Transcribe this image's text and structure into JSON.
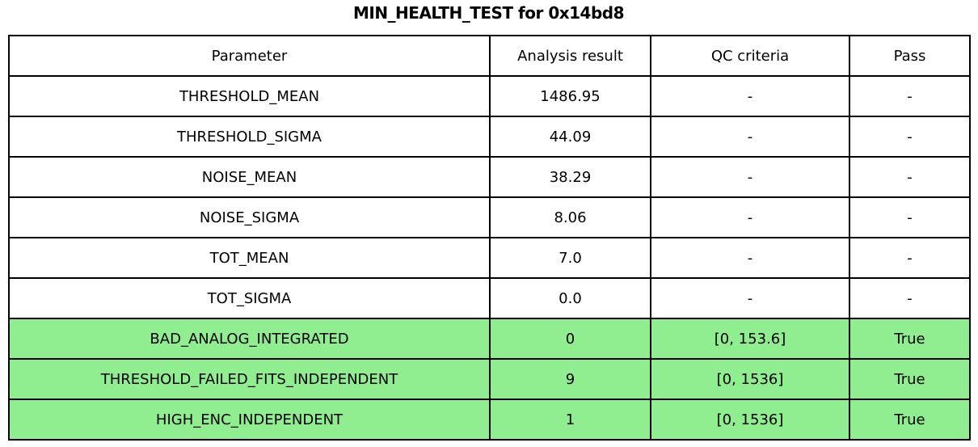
{
  "chart_data": {
    "type": "table",
    "title": "MIN_HEALTH_TEST for 0x14bd8",
    "columns": [
      "Parameter",
      "Analysis result",
      "QC criteria",
      "Pass"
    ],
    "rows": [
      {
        "parameter": "THRESHOLD_MEAN",
        "result": "1486.95",
        "qc": "-",
        "pass": "-",
        "highlight": false
      },
      {
        "parameter": "THRESHOLD_SIGMA",
        "result": "44.09",
        "qc": "-",
        "pass": "-",
        "highlight": false
      },
      {
        "parameter": "NOISE_MEAN",
        "result": "38.29",
        "qc": "-",
        "pass": "-",
        "highlight": false
      },
      {
        "parameter": "NOISE_SIGMA",
        "result": "8.06",
        "qc": "-",
        "pass": "-",
        "highlight": false
      },
      {
        "parameter": "TOT_MEAN",
        "result": "7.0",
        "qc": "-",
        "pass": "-",
        "highlight": false
      },
      {
        "parameter": "TOT_SIGMA",
        "result": "0.0",
        "qc": "-",
        "pass": "-",
        "highlight": false
      },
      {
        "parameter": "BAD_ANALOG_INTEGRATED",
        "result": "0",
        "qc": "[0, 153.6]",
        "pass": "True",
        "highlight": true
      },
      {
        "parameter": "THRESHOLD_FAILED_FITS_INDEPENDENT",
        "result": "9",
        "qc": "[0, 1536]",
        "pass": "True",
        "highlight": true
      },
      {
        "parameter": "HIGH_ENC_INDEPENDENT",
        "result": "1",
        "qc": "[0, 1536]",
        "pass": "True",
        "highlight": true
      }
    ],
    "highlight_color": "#90EE90",
    "border_color": "#000000",
    "text_color": "#000000",
    "background_color": "#FFFFFF"
  }
}
